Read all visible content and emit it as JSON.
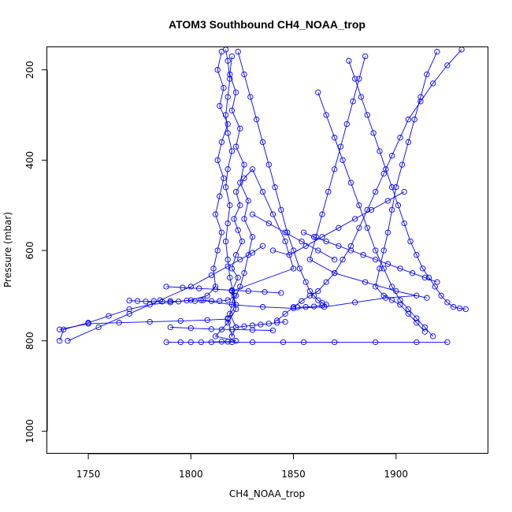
{
  "chart_data": {
    "type": "line",
    "title": "ATOM3 Southbound CH4_NOAA_trop",
    "xlabel": "CH4_NOAA_trop",
    "ylabel": "Pressure (mbar)",
    "xlim": [
      1730,
      1945
    ],
    "ylim": [
      1050,
      150
    ],
    "y_reversed": true,
    "x_ticks": [
      1750,
      1800,
      1850,
      1900
    ],
    "y_ticks": [
      200,
      400,
      600,
      800,
      1000
    ],
    "grid": false,
    "legend": "none",
    "marker": "open-circle",
    "series_color": "#0000ff",
    "series": [
      {
        "x": [
          1817,
          1818,
          1819,
          1818,
          1817,
          1818,
          1820,
          1818,
          1817,
          1819,
          1818,
          1817,
          1818,
          1819,
          1821,
          1819,
          1822,
          1820,
          1818,
          1822,
          1820,
          1823,
          1820,
          1822,
          1825,
          1823,
          1821,
          1824,
          1822,
          1826,
          1830,
          1835,
          1840,
          1846,
          1850,
          1820,
          1822,
          1818,
          1815,
          1812,
          1822,
          1818,
          1815,
          1805,
          1795,
          1788,
          1800,
          1810,
          1820,
          1830,
          1845,
          1855,
          1870,
          1890,
          1910,
          1925
        ],
        "y": [
          155,
          180,
          220,
          260,
          300,
          340,
          380,
          420,
          460,
          500,
          540,
          580,
          620,
          660,
          700,
          740,
          770,
          790,
          750,
          720,
          690,
          660,
          640,
          610,
          580,
          555,
          530,
          500,
          470,
          440,
          420,
          470,
          520,
          580,
          640,
          690,
          730,
          760,
          775,
          790,
          800,
          802,
          802,
          803,
          803,
          803,
          803,
          803,
          803,
          803,
          803,
          803,
          803,
          803,
          803,
          803
        ]
      },
      {
        "x": [
          1815,
          1813,
          1816,
          1814,
          1818,
          1815,
          1813,
          1816,
          1814,
          1812,
          1815,
          1813,
          1811,
          1812,
          1808,
          1800,
          1790,
          1780,
          1770,
          1760,
          1750,
          1738,
          1736
        ],
        "y": [
          160,
          200,
          240,
          280,
          320,
          360,
          400,
          440,
          480,
          520,
          560,
          600,
          640,
          680,
          700,
          710,
          715,
          720,
          730,
          745,
          760,
          775,
          800
        ]
      },
      {
        "x": [
          1820,
          1819,
          1822,
          1820,
          1824,
          1822,
          1826,
          1824,
          1828,
          1826,
          1830,
          1828,
          1826,
          1824,
          1822,
          1818,
          1814,
          1810,
          1806,
          1802,
          1798,
          1794,
          1790,
          1786,
          1782,
          1778,
          1774,
          1770
        ],
        "y": [
          170,
          210,
          250,
          290,
          330,
          370,
          410,
          450,
          490,
          530,
          570,
          610,
          650,
          680,
          700,
          710,
          712,
          712,
          710,
          712,
          711,
          713,
          712,
          713,
          712,
          713,
          712,
          711
        ]
      },
      {
        "x": [
          1823,
          1826,
          1829,
          1832,
          1835,
          1838,
          1841,
          1844,
          1847,
          1850,
          1853,
          1856,
          1858,
          1860,
          1862,
          1864,
          1866,
          1864,
          1860,
          1856,
          1852
        ],
        "y": [
          160,
          210,
          260,
          310,
          360,
          410,
          460,
          510,
          560,
          600,
          640,
          670,
          690,
          700,
          710,
          716,
          720,
          722,
          724,
          725,
          726
        ]
      },
      {
        "x": [
          1932,
          1925,
          1918,
          1912,
          1906,
          1902,
          1898,
          1894,
          1890,
          1886,
          1882,
          1878,
          1874,
          1870,
          1866,
          1862,
          1858,
          1854,
          1850,
          1846,
          1842
        ],
        "y": [
          155,
          190,
          230,
          270,
          310,
          350,
          390,
          430,
          470,
          510,
          550,
          590,
          620,
          650,
          670,
          690,
          700,
          712,
          725,
          740,
          755
        ]
      },
      {
        "x": [
          1920,
          1915,
          1912,
          1909,
          1906,
          1903,
          1900,
          1898,
          1896,
          1894,
          1892,
          1890,
          1894,
          1898,
          1902,
          1906,
          1910,
          1914
        ],
        "y": [
          160,
          210,
          260,
          310,
          360,
          410,
          460,
          510,
          560,
          600,
          640,
          680,
          700,
          710,
          720,
          740,
          760,
          780
        ]
      },
      {
        "x": [
          1885,
          1882,
          1879,
          1876,
          1873,
          1870,
          1867,
          1864,
          1861,
          1858,
          1870,
          1885,
          1900,
          1915
        ],
        "y": [
          170,
          220,
          270,
          320,
          370,
          420,
          470,
          520,
          570,
          620,
          650,
          670,
          690,
          705
        ]
      },
      {
        "x": [
          1877,
          1880,
          1883,
          1886,
          1889,
          1892,
          1895,
          1898,
          1901,
          1904,
          1907,
          1910,
          1913,
          1916,
          1919,
          1922,
          1925,
          1928,
          1931,
          1934
        ],
        "y": [
          180,
          220,
          260,
          300,
          340,
          380,
          420,
          460,
          500,
          540,
          580,
          610,
          640,
          660,
          680,
          700,
          715,
          725,
          728,
          730
        ]
      },
      {
        "x": [
          1862,
          1866,
          1870,
          1874,
          1878,
          1882,
          1886,
          1890,
          1894,
          1898,
          1902,
          1906,
          1910,
          1914,
          1918
        ],
        "y": [
          250,
          300,
          350,
          400,
          450,
          500,
          550,
          600,
          640,
          680,
          710,
          730,
          750,
          770,
          790
        ]
      },
      {
        "x": [
          1855,
          1860,
          1866,
          1872,
          1878,
          1884,
          1890,
          1896,
          1902,
          1908,
          1914,
          1920
        ],
        "y": [
          560,
          570,
          580,
          590,
          600,
          610,
          620,
          630,
          640,
          650,
          660,
          670
        ]
      },
      {
        "x": [
          1740,
          1755,
          1770,
          1785,
          1800,
          1810,
          1818,
          1824,
          1830,
          1835
        ],
        "y": [
          800,
          770,
          740,
          710,
          680,
          655,
          635,
          620,
          605,
          590
        ]
      },
      {
        "x": [
          1736,
          1750,
          1765,
          1780,
          1795,
          1808,
          1818
        ],
        "y": [
          775,
          762,
          760,
          758,
          756,
          754,
          752
        ]
      },
      {
        "x": [
          1788,
          1796,
          1804,
          1812,
          1820,
          1828,
          1836,
          1844
        ],
        "y": [
          680,
          682,
          684,
          686,
          688,
          690,
          692,
          694
        ]
      },
      {
        "x": [
          1805,
          1820,
          1835,
          1850,
          1865,
          1880,
          1895,
          1910
        ],
        "y": [
          710,
          720,
          725,
          728,
          725,
          715,
          705,
          700
        ]
      },
      {
        "x": [
          1830,
          1838,
          1846,
          1854,
          1862,
          1870
        ],
        "y": [
          520,
          540,
          560,
          580,
          600,
          620
        ]
      },
      {
        "x": [
          1840,
          1848,
          1856,
          1864,
          1872,
          1880,
          1888,
          1896,
          1904
        ],
        "y": [
          600,
          610,
          590,
          570,
          550,
          530,
          510,
          490,
          470
        ]
      },
      {
        "x": [
          1822,
          1826,
          1830,
          1834,
          1838,
          1842,
          1846
        ],
        "y": [
          770,
          768,
          766,
          764,
          762,
          760,
          758
        ]
      },
      {
        "x": [
          1790,
          1800,
          1810,
          1820,
          1830,
          1840
        ],
        "y": [
          770,
          772,
          774,
          775,
          776,
          777
        ]
      }
    ]
  }
}
